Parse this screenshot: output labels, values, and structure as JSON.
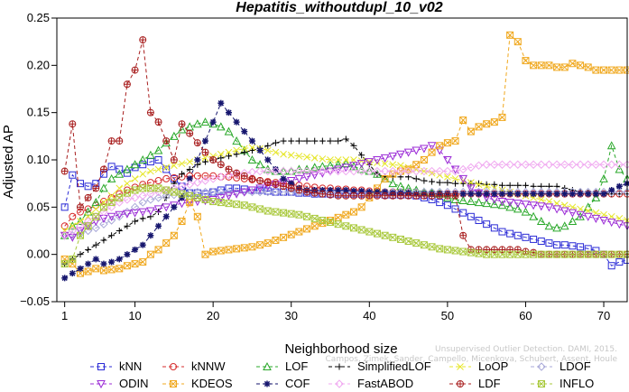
{
  "chart_data": {
    "type": "line",
    "title": "Hepatitis_withoutdupl_10_v02",
    "xlabel": "Neighborhood size",
    "ylabel": "Adjusted AP",
    "xlim": [
      0,
      73
    ],
    "ylim": [
      -0.05,
      0.25
    ],
    "xticks": [
      1,
      10,
      20,
      30,
      40,
      50,
      60,
      70
    ],
    "yticks": [
      -0.05,
      0.0,
      0.05,
      0.1,
      0.15,
      0.2,
      0.25
    ],
    "ytick_labels": [
      "−0.05",
      "0.00",
      "0.05",
      "0.10",
      "0.15",
      "0.20",
      "0.25"
    ],
    "grid": false,
    "legend_position": "bottom",
    "watermark": [
      "Unsupervised Outlier Detection. DAMI, 2015.",
      "Campos, Zimek, Sander, Campello, Micenkova, Schubert, Assent, Houle"
    ],
    "series": [
      {
        "name": "kNN",
        "color": "#2b2bd6",
        "marker": "square",
        "values": [
          0.05,
          0.084,
          0.075,
          0.072,
          0.075,
          0.085,
          0.093,
          0.09,
          0.086,
          0.092,
          0.095,
          0.098,
          0.1,
          0.09,
          0.08,
          0.072,
          0.065,
          0.065,
          0.064,
          0.066,
          0.068,
          0.07,
          0.07,
          0.069,
          0.068,
          0.068,
          0.067,
          0.066,
          0.066,
          0.066,
          0.065,
          0.065,
          0.064,
          0.064,
          0.064,
          0.064,
          0.064,
          0.064,
          0.064,
          0.064,
          0.064,
          0.063,
          0.063,
          0.063,
          0.063,
          0.062,
          0.06,
          0.058,
          0.055,
          0.052,
          0.048,
          0.044,
          0.04,
          0.036,
          0.032,
          0.028,
          0.024,
          0.022,
          0.02,
          0.018,
          0.016,
          0.014,
          0.012,
          0.01,
          0.01,
          0.009,
          0.008,
          0.006,
          0.004,
          0.0,
          -0.012,
          -0.008,
          -0.006
        ]
      },
      {
        "name": "kNNW",
        "color": "#d62b2b",
        "marker": "circle",
        "values": [
          0.03,
          0.04,
          0.045,
          0.048,
          0.052,
          0.056,
          0.06,
          0.064,
          0.068,
          0.071,
          0.074,
          0.076,
          0.078,
          0.08,
          0.081,
          0.082,
          0.083,
          0.083,
          0.083,
          0.083,
          0.082,
          0.082,
          0.081,
          0.08,
          0.079,
          0.078,
          0.077,
          0.076,
          0.075,
          0.074,
          0.073,
          0.072,
          0.071,
          0.07,
          0.07,
          0.069,
          0.069,
          0.068,
          0.068,
          0.067,
          0.067,
          0.066,
          0.066,
          0.066,
          0.065,
          0.065,
          0.065,
          0.065,
          0.064,
          0.064,
          0.064,
          0.064,
          0.064,
          0.064,
          0.064,
          0.064,
          0.064,
          0.064,
          0.064,
          0.064,
          0.064,
          0.064,
          0.064,
          0.064,
          0.064,
          0.064,
          0.064,
          0.064,
          0.064,
          0.064,
          0.064,
          0.064,
          0.064
        ]
      },
      {
        "name": "LOF",
        "color": "#2aa82a",
        "marker": "triangle",
        "values": [
          0.02,
          0.03,
          0.035,
          0.045,
          0.055,
          0.07,
          0.08,
          0.085,
          0.09,
          0.095,
          0.1,
          0.105,
          0.11,
          0.118,
          0.125,
          0.132,
          0.135,
          0.138,
          0.14,
          0.138,
          0.135,
          0.13,
          0.12,
          0.11,
          0.1,
          0.095,
          0.09,
          0.088,
          0.088,
          0.088,
          0.09,
          0.09,
          0.092,
          0.093,
          0.094,
          0.095,
          0.096,
          0.093,
          0.09,
          0.088,
          0.085,
          0.08,
          0.075,
          0.072,
          0.07,
          0.068,
          0.066,
          0.065,
          0.064,
          0.06,
          0.058,
          0.057,
          0.056,
          0.055,
          0.054,
          0.053,
          0.052,
          0.05,
          0.048,
          0.045,
          0.04,
          0.035,
          0.03,
          0.028,
          0.03,
          0.035,
          0.04,
          0.05,
          0.06,
          0.08,
          0.115,
          0.09,
          0.08
        ]
      },
      {
        "name": "SimplifiedLOF",
        "color": "#000000",
        "marker": "plus",
        "values": [
          -0.01,
          -0.005,
          0.0,
          0.005,
          0.01,
          0.015,
          0.02,
          0.025,
          0.03,
          0.035,
          0.038,
          0.04,
          0.045,
          0.06,
          0.075,
          0.085,
          0.09,
          0.095,
          0.098,
          0.1,
          0.102,
          0.104,
          0.106,
          0.108,
          0.11,
          0.112,
          0.115,
          0.118,
          0.12,
          0.12,
          0.12,
          0.12,
          0.12,
          0.12,
          0.12,
          0.12,
          0.122,
          0.115,
          0.105,
          0.095,
          0.085,
          0.082,
          0.082,
          0.082,
          0.082,
          0.08,
          0.078,
          0.077,
          0.076,
          0.076,
          0.075,
          0.075,
          0.075,
          0.075,
          0.074,
          0.074,
          0.073,
          0.073,
          0.073,
          0.073,
          0.072,
          0.072,
          0.072,
          0.072,
          0.07,
          0.068,
          0.066,
          0.065,
          0.065,
          0.064,
          0.064,
          0.064,
          0.064
        ]
      },
      {
        "name": "LoOP",
        "color": "#e6e62a",
        "marker": "x",
        "values": [
          0.025,
          0.03,
          0.035,
          0.04,
          0.048,
          0.055,
          0.062,
          0.07,
          0.075,
          0.08,
          0.085,
          0.088,
          0.09,
          0.092,
          0.094,
          0.096,
          0.098,
          0.1,
          0.102,
          0.104,
          0.106,
          0.108,
          0.11,
          0.112,
          0.113,
          0.112,
          0.11,
          0.108,
          0.106,
          0.105,
          0.104,
          0.103,
          0.102,
          0.101,
          0.1,
          0.1,
          0.1,
          0.1,
          0.099,
          0.098,
          0.097,
          0.096,
          0.095,
          0.094,
          0.092,
          0.09,
          0.088,
          0.086,
          0.084,
          0.082,
          0.08,
          0.078,
          0.076,
          0.074,
          0.072,
          0.07,
          0.068,
          0.066,
          0.064,
          0.062,
          0.06,
          0.058,
          0.056,
          0.054,
          0.052,
          0.05,
          0.048,
          0.046,
          0.044,
          0.042,
          0.04,
          0.038,
          0.036
        ]
      },
      {
        "name": "LDOF",
        "color": "#a8a8d8",
        "marker": "diamond",
        "values": [
          0.02,
          0.02,
          0.022,
          0.025,
          0.028,
          0.032,
          0.036,
          0.04,
          0.045,
          0.05,
          0.055,
          0.058,
          0.06,
          0.062,
          0.063,
          0.064,
          0.065,
          0.066,
          0.066,
          0.066,
          0.066,
          0.066,
          0.066,
          0.066,
          0.066,
          0.066,
          0.066,
          0.066,
          0.066,
          0.066,
          0.066,
          0.066,
          0.066,
          0.066,
          0.066,
          0.066,
          0.066,
          0.066,
          0.066,
          0.066,
          0.066,
          0.066,
          0.066,
          0.066,
          0.066,
          0.066,
          0.066,
          0.066,
          0.066,
          0.066,
          0.066,
          0.066,
          0.066,
          0.066,
          0.066,
          0.066,
          0.066,
          0.066,
          0.066,
          0.066,
          0.066,
          0.066,
          0.066,
          0.066,
          0.066,
          0.066,
          0.066,
          0.066,
          0.066,
          0.066,
          0.066,
          0.066,
          0.066
        ]
      },
      {
        "name": "ODIN",
        "color": "#9b2bd6",
        "marker": "triangle-down",
        "values": [
          0.02,
          0.018,
          0.025,
          0.03,
          0.035,
          0.038,
          0.04,
          0.042,
          0.043,
          0.044,
          0.045,
          0.046,
          0.048,
          0.05,
          0.052,
          0.054,
          0.055,
          0.056,
          0.057,
          0.058,
          0.06,
          0.062,
          0.064,
          0.066,
          0.068,
          0.07,
          0.072,
          0.074,
          0.076,
          0.078,
          0.08,
          0.082,
          0.084,
          0.086,
          0.088,
          0.09,
          0.092,
          0.094,
          0.096,
          0.098,
          0.1,
          0.102,
          0.104,
          0.106,
          0.108,
          0.11,
          0.112,
          0.115,
          0.11,
          0.1,
          0.09,
          0.08,
          0.07,
          0.065,
          0.06,
          0.058,
          0.056,
          0.055,
          0.054,
          0.053,
          0.052,
          0.051,
          0.05,
          0.048,
          0.046,
          0.044,
          0.042,
          0.04,
          0.038,
          0.036,
          0.034,
          0.032,
          0.03
        ]
      },
      {
        "name": "KDEOS",
        "color": "#f0a81e",
        "marker": "square-x",
        "values": [
          -0.005,
          -0.01,
          -0.02,
          -0.018,
          -0.015,
          -0.017,
          -0.016,
          -0.015,
          -0.012,
          -0.01,
          -0.008,
          0.0,
          0.005,
          0.012,
          0.02,
          0.035,
          0.055,
          0.04,
          0.0,
          0.003,
          0.004,
          0.005,
          0.006,
          0.007,
          0.008,
          0.01,
          0.012,
          0.015,
          0.018,
          0.021,
          0.024,
          0.027,
          0.03,
          0.033,
          0.036,
          0.039,
          0.042,
          0.045,
          0.05,
          0.06,
          0.07,
          0.08,
          0.085,
          0.088,
          0.09,
          0.095,
          0.1,
          0.108,
          0.115,
          0.118,
          0.12,
          0.142,
          0.13,
          0.135,
          0.138,
          0.14,
          0.145,
          0.232,
          0.225,
          0.205,
          0.2,
          0.2,
          0.2,
          0.198,
          0.198,
          0.202,
          0.2,
          0.198,
          0.195,
          0.195,
          0.195,
          0.195,
          0.195
        ]
      },
      {
        "name": "COF",
        "color": "#16166e",
        "marker": "star",
        "values": [
          -0.025,
          -0.02,
          -0.015,
          -0.01,
          -0.005,
          -0.01,
          -0.008,
          -0.005,
          0.0,
          0.005,
          0.01,
          0.02,
          0.03,
          0.04,
          0.05,
          0.06,
          0.08,
          0.1,
          0.12,
          0.14,
          0.16,
          0.15,
          0.14,
          0.13,
          0.12,
          0.11,
          0.1,
          0.09,
          0.08,
          0.075,
          0.07,
          0.068,
          0.068,
          0.068,
          0.068,
          0.068,
          0.068,
          0.067,
          0.067,
          0.066,
          0.066,
          0.066,
          0.065,
          0.065,
          0.065,
          0.064,
          0.064,
          0.064,
          0.064,
          0.064,
          0.064,
          0.064,
          0.064,
          0.064,
          0.064,
          0.064,
          0.064,
          0.064,
          0.064,
          0.064,
          0.064,
          0.064,
          0.064,
          0.064,
          0.064,
          0.064,
          0.064,
          0.064,
          0.064,
          0.064,
          0.068,
          0.072,
          0.075
        ]
      },
      {
        "name": "FastABOD",
        "color": "#f0a8f0",
        "marker": "diamond",
        "values": [
          0.02,
          0.025,
          0.03,
          0.035,
          0.04,
          0.045,
          0.05,
          0.055,
          0.058,
          0.06,
          0.062,
          0.064,
          0.066,
          0.068,
          0.07,
          0.072,
          0.074,
          0.076,
          0.078,
          0.08,
          0.082,
          0.084,
          0.085,
          0.086,
          0.087,
          0.088,
          0.088,
          0.088,
          0.088,
          0.088,
          0.088,
          0.088,
          0.088,
          0.088,
          0.088,
          0.088,
          0.088,
          0.088,
          0.088,
          0.088,
          0.088,
          0.088,
          0.088,
          0.088,
          0.088,
          0.088,
          0.088,
          0.088,
          0.088,
          0.088,
          0.088,
          0.09,
          0.092,
          0.094,
          0.095,
          0.095,
          0.095,
          0.095,
          0.095,
          0.095,
          0.095,
          0.095,
          0.095,
          0.095,
          0.095,
          0.095,
          0.095,
          0.095,
          0.095,
          0.095,
          0.095,
          0.095,
          0.095
        ]
      },
      {
        "name": "LDF",
        "color": "#a81e1e",
        "marker": "circle-plus",
        "values": [
          0.088,
          0.138,
          0.05,
          0.06,
          0.07,
          0.09,
          0.12,
          0.12,
          0.18,
          0.195,
          0.227,
          0.15,
          0.14,
          0.12,
          0.1,
          0.138,
          0.128,
          0.118,
          0.108,
          0.1,
          0.095,
          0.09,
          0.086,
          0.083,
          0.08,
          0.078,
          0.076,
          0.074,
          0.072,
          0.07,
          0.068,
          0.066,
          0.065,
          0.064,
          0.063,
          0.062,
          0.062,
          0.062,
          0.062,
          0.062,
          0.062,
          0.062,
          0.062,
          0.062,
          0.062,
          0.062,
          0.062,
          0.062,
          0.062,
          0.062,
          0.062,
          0.02,
          0.005,
          0.005,
          0.005,
          0.005,
          0.005,
          0.005,
          0.005,
          0.003,
          0.002,
          0.0,
          0.0,
          0.0,
          0.0,
          0.0,
          0.0,
          0.0,
          0.0,
          0.0,
          0.0,
          0.0,
          0.0
        ]
      },
      {
        "name": "INFLO",
        "color": "#a8c83a",
        "marker": "square-x",
        "values": [
          -0.01,
          -0.005,
          0.02,
          0.03,
          0.04,
          0.05,
          0.055,
          0.06,
          0.065,
          0.068,
          0.07,
          0.07,
          0.07,
          0.068,
          0.066,
          0.064,
          0.062,
          0.06,
          0.058,
          0.056,
          0.055,
          0.054,
          0.053,
          0.052,
          0.05,
          0.048,
          0.046,
          0.045,
          0.044,
          0.043,
          0.042,
          0.04,
          0.038,
          0.036,
          0.034,
          0.032,
          0.03,
          0.028,
          0.026,
          0.024,
          0.022,
          0.02,
          0.018,
          0.016,
          0.014,
          0.012,
          0.01,
          0.008,
          0.006,
          0.005,
          0.004,
          0.003,
          0.002,
          0.001,
          0.0,
          0.0,
          0.0,
          0.0,
          0.0,
          0.0,
          0.0,
          0.0,
          0.0,
          0.0,
          0.0,
          0.0,
          0.0,
          0.0,
          0.0,
          0.0,
          0.0,
          0.0,
          0.0
        ]
      }
    ]
  }
}
